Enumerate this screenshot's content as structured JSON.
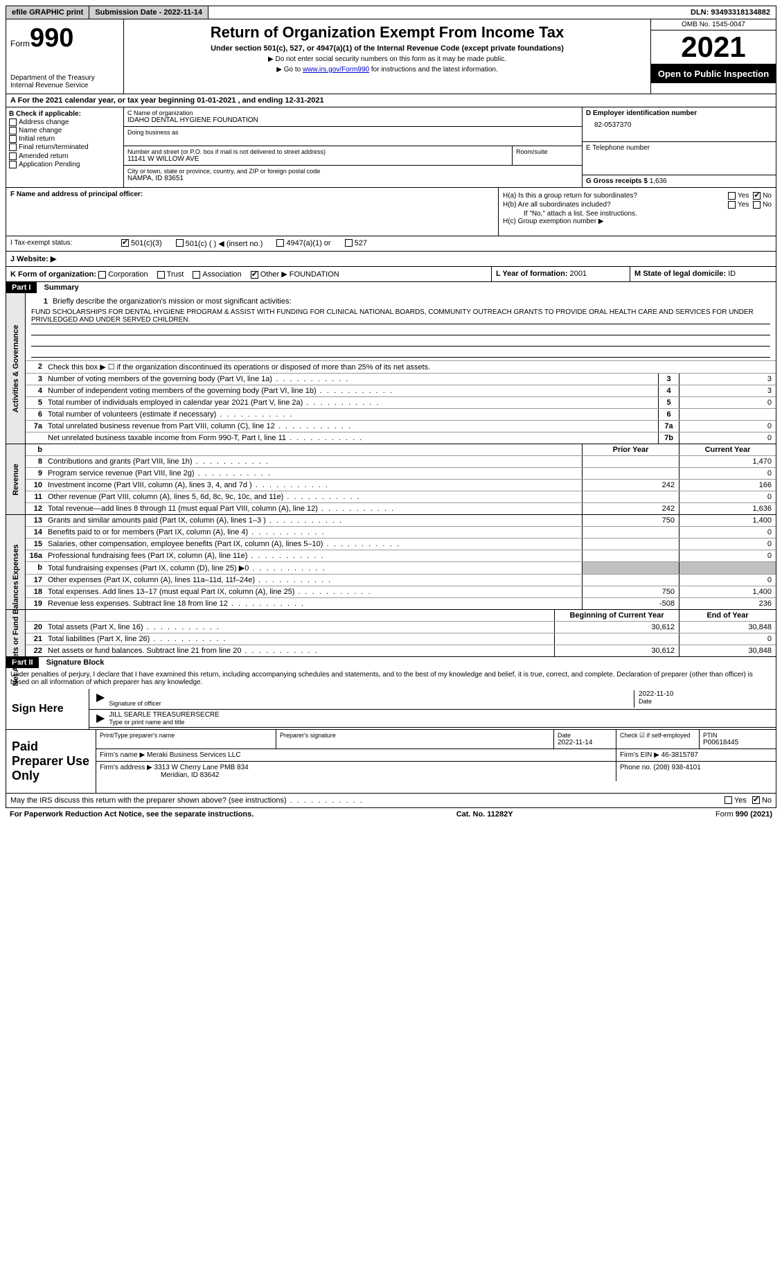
{
  "topbar": {
    "efile": "efile GRAPHIC print",
    "submission": "Submission Date - 2022-11-14",
    "dln_label": "DLN:",
    "dln": "93493318134882"
  },
  "header": {
    "form_word": "Form",
    "form_num": "990",
    "dept": "Department of the Treasury",
    "irs": "Internal Revenue Service",
    "title": "Return of Organization Exempt From Income Tax",
    "subtitle": "Under section 501(c), 527, or 4947(a)(1) of the Internal Revenue Code (except private foundations)",
    "instr1": "▶ Do not enter social security numbers on this form as it may be made public.",
    "instr2_pre": "▶ Go to ",
    "instr2_link": "www.irs.gov/Form990",
    "instr2_post": " for instructions and the latest information.",
    "omb": "OMB No. 1545-0047",
    "year": "2021",
    "open": "Open to Public Inspection"
  },
  "period": "A For the 2021 calendar year, or tax year beginning 01-01-2021   , and ending 12-31-2021",
  "box_b": {
    "title": "B Check if applicable:",
    "items": [
      "Address change",
      "Name change",
      "Initial return",
      "Final return/terminated",
      "Amended return",
      "Application Pending"
    ]
  },
  "box_c": {
    "name_lbl": "C Name of organization",
    "name": "IDAHO DENTAL HYGIENE FOUNDATION",
    "dba_lbl": "Doing business as",
    "addr_lbl": "Number and street (or P.O. box if mail is not delivered to street address)",
    "room_lbl": "Room/suite",
    "addr": "11141 W WILLOW AVE",
    "city_lbl": "City or town, state or province, country, and ZIP or foreign postal code",
    "city": "NAMPA, ID  83651"
  },
  "box_d": {
    "ein_lbl": "D Employer identification number",
    "ein": "82-0537370",
    "tel_lbl": "E Telephone number",
    "gross_lbl": "G Gross receipts $",
    "gross": "1,636"
  },
  "box_f": {
    "lbl": "F Name and address of principal officer:"
  },
  "box_h": {
    "ha": "H(a)  Is this a group return for subordinates?",
    "hb": "H(b)  Are all subordinates included?",
    "hb_note": "If \"No,\" attach a list. See instructions.",
    "hc": "H(c)  Group exemption number ▶",
    "yes": "Yes",
    "no": "No"
  },
  "tax_status": {
    "lbl": "I   Tax-exempt status:",
    "opts": [
      "501(c)(3)",
      "501(c) (  ) ◀ (insert no.)",
      "4947(a)(1) or",
      "527"
    ]
  },
  "website": "J   Website: ▶",
  "box_k": {
    "lbl": "K Form of organization:",
    "opts": [
      "Corporation",
      "Trust",
      "Association",
      "Other ▶"
    ],
    "other_val": "FOUNDATION"
  },
  "box_l": {
    "lbl": "L Year of formation:",
    "val": "2001"
  },
  "box_m": {
    "lbl": "M State of legal domicile:",
    "val": "ID"
  },
  "part1": {
    "hdr": "Part I",
    "title": "Summary",
    "mission_lbl": "Briefly describe the organization's mission or most significant activities:",
    "mission": "FUND SCHOLARSHIPS FOR DENTAL HYGIENE PROGRAM & ASSIST WITH FUNDING FOR CLINICAL NATIONAL BOARDS, COMMUNITY OUTREACH GRANTS TO PROVIDE ORAL HEALTH CARE AND SERVICES FOR UNDER PRIVILEDGED AND UNDER SERVED CHILDREN.",
    "line2": "Check this box ▶ ☐  if the organization discontinued its operations or disposed of more than 25% of its net assets.",
    "vlabels": {
      "gov": "Activities & Governance",
      "rev": "Revenue",
      "exp": "Expenses",
      "net": "Net Assets or Fund Balances"
    },
    "col_prior": "Prior Year",
    "col_curr": "Current Year",
    "col_beg": "Beginning of Current Year",
    "col_end": "End of Year",
    "lines_gov": [
      {
        "n": "3",
        "t": "Number of voting members of the governing body (Part VI, line 1a)",
        "box": "3",
        "v": "3"
      },
      {
        "n": "4",
        "t": "Number of independent voting members of the governing body (Part VI, line 1b)",
        "box": "4",
        "v": "3"
      },
      {
        "n": "5",
        "t": "Total number of individuals employed in calendar year 2021 (Part V, line 2a)",
        "box": "5",
        "v": "0"
      },
      {
        "n": "6",
        "t": "Total number of volunteers (estimate if necessary)",
        "box": "6",
        "v": ""
      },
      {
        "n": "7a",
        "t": "Total unrelated business revenue from Part VIII, column (C), line 12",
        "box": "7a",
        "v": "0"
      },
      {
        "n": "",
        "t": "Net unrelated business taxable income from Form 990-T, Part I, line 11",
        "box": "7b",
        "v": "0"
      }
    ],
    "lines_rev": [
      {
        "n": "8",
        "t": "Contributions and grants (Part VIII, line 1h)",
        "p": "",
        "c": "1,470"
      },
      {
        "n": "9",
        "t": "Program service revenue (Part VIII, line 2g)",
        "p": "",
        "c": "0"
      },
      {
        "n": "10",
        "t": "Investment income (Part VIII, column (A), lines 3, 4, and 7d )",
        "p": "242",
        "c": "166"
      },
      {
        "n": "11",
        "t": "Other revenue (Part VIII, column (A), lines 5, 6d, 8c, 9c, 10c, and 11e)",
        "p": "",
        "c": "0"
      },
      {
        "n": "12",
        "t": "Total revenue—add lines 8 through 11 (must equal Part VIII, column (A), line 12)",
        "p": "242",
        "c": "1,636"
      }
    ],
    "lines_exp": [
      {
        "n": "13",
        "t": "Grants and similar amounts paid (Part IX, column (A), lines 1–3 )",
        "p": "750",
        "c": "1,400"
      },
      {
        "n": "14",
        "t": "Benefits paid to or for members (Part IX, column (A), line 4)",
        "p": "",
        "c": "0"
      },
      {
        "n": "15",
        "t": "Salaries, other compensation, employee benefits (Part IX, column (A), lines 5–10)",
        "p": "",
        "c": "0"
      },
      {
        "n": "16a",
        "t": "Professional fundraising fees (Part IX, column (A), line 11e)",
        "p": "",
        "c": "0"
      },
      {
        "n": "b",
        "t": "Total fundraising expenses (Part IX, column (D), line 25) ▶0",
        "p": "shade",
        "c": "shade"
      },
      {
        "n": "17",
        "t": "Other expenses (Part IX, column (A), lines 11a–11d, 11f–24e)",
        "p": "",
        "c": "0"
      },
      {
        "n": "18",
        "t": "Total expenses. Add lines 13–17 (must equal Part IX, column (A), line 25)",
        "p": "750",
        "c": "1,400"
      },
      {
        "n": "19",
        "t": "Revenue less expenses. Subtract line 18 from line 12",
        "p": "-508",
        "c": "236"
      }
    ],
    "lines_net": [
      {
        "n": "20",
        "t": "Total assets (Part X, line 16)",
        "p": "30,612",
        "c": "30,848"
      },
      {
        "n": "21",
        "t": "Total liabilities (Part X, line 26)",
        "p": "",
        "c": "0"
      },
      {
        "n": "22",
        "t": "Net assets or fund balances. Subtract line 21 from line 20",
        "p": "30,612",
        "c": "30,848"
      }
    ]
  },
  "part2": {
    "hdr": "Part II",
    "title": "Signature Block",
    "penalties": "Under penalties of perjury, I declare that I have examined this return, including accompanying schedules and statements, and to the best of my knowledge and belief, it is true, correct, and complete. Declaration of preparer (other than officer) is based on all information of which preparer has any knowledge.",
    "sign_here": "Sign Here",
    "sig_officer": "Signature of officer",
    "date_lbl": "Date",
    "sig_date": "2022-11-10",
    "name_title": "JILL SEARLE  TREASURERSECRE",
    "name_lbl": "Type or print name and title",
    "paid": "Paid Preparer Use Only",
    "prep_name_lbl": "Print/Type preparer's name",
    "prep_sig_lbl": "Preparer's signature",
    "prep_date_lbl": "Date",
    "prep_date": "2022-11-14",
    "check_self": "Check ☑ if self-employed",
    "ptin_lbl": "PTIN",
    "ptin": "P00618445",
    "firm_name_lbl": "Firm's name    ▶",
    "firm_name": "Meraki Business Services LLC",
    "firm_ein_lbl": "Firm's EIN ▶",
    "firm_ein": "46-3815787",
    "firm_addr_lbl": "Firm's address ▶",
    "firm_addr": "3313 W Cherry Lane PMB 834",
    "firm_city": "Meridian, ID  83642",
    "phone_lbl": "Phone no.",
    "phone": "(208) 938-4101",
    "discuss": "May the IRS discuss this return with the preparer shown above? (see instructions)"
  },
  "footer": {
    "pra": "For Paperwork Reduction Act Notice, see the separate instructions.",
    "cat": "Cat. No. 11282Y",
    "form": "Form 990 (2021)"
  },
  "colors": {
    "black": "#000000",
    "gray_bg": "#d0d0d0",
    "shade": "#c0c0c0",
    "link": "#0000cc"
  }
}
